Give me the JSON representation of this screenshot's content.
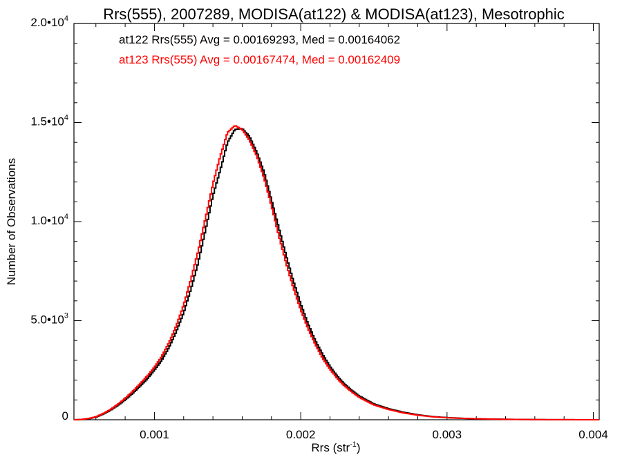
{
  "chart_data": {
    "type": "line",
    "title": "Rrs(555), 2007289, MODISA(at122) & MODISA(at123), Mesotrophic",
    "xlabel": "Rrs (str",
    "xlabel_sup": "-1",
    "xlabel_suffix": ")",
    "ylabel": "Number of Observations",
    "xlim": [
      0.00045,
      0.00404
    ],
    "ylim": [
      0,
      20000
    ],
    "x_ticks": [
      {
        "value": 0.001,
        "label": "0.001"
      },
      {
        "value": 0.002,
        "label": "0.002"
      },
      {
        "value": 0.003,
        "label": "0.003"
      },
      {
        "value": 0.004,
        "label": "0.004"
      }
    ],
    "y_ticks": [
      {
        "value": 0,
        "label": "0",
        "sup": ""
      },
      {
        "value": 5000,
        "label": "5.0•10",
        "sup": "3"
      },
      {
        "value": 10000,
        "label": "1.0•10",
        "sup": "4"
      },
      {
        "value": 15000,
        "label": "1.5•10",
        "sup": "4"
      },
      {
        "value": 20000,
        "label": "2.0•10",
        "sup": "4"
      }
    ],
    "legend": [
      {
        "text": "at122 Rrs(555) Avg = 0.00169293, Med = 0.00164062",
        "color": "#000000"
      },
      {
        "text": "at123 Rrs(555) Avg = 0.00167474, Med = 0.00162409",
        "color": "#ff0000"
      }
    ],
    "legend_placement": "top-left",
    "series": [
      {
        "color": "#000000",
        "x": [
          0.00045,
          0.0005,
          0.00055,
          0.0006,
          0.00065,
          0.0007,
          0.00075,
          0.0008,
          0.00085,
          0.0009,
          0.00095,
          0.001,
          0.00105,
          0.0011,
          0.00115,
          0.0012,
          0.00125,
          0.0013,
          0.00135,
          0.0014,
          0.00145,
          0.0015,
          0.00155,
          0.0016,
          0.00165,
          0.0017,
          0.00175,
          0.0018,
          0.00185,
          0.0019,
          0.00195,
          0.002,
          0.00205,
          0.0021,
          0.00215,
          0.0022,
          0.00225,
          0.0023,
          0.00235,
          0.0024,
          0.0025,
          0.0026,
          0.0027,
          0.0028,
          0.0029,
          0.003,
          0.0031,
          0.0032,
          0.0033,
          0.0034,
          0.0035,
          0.0036,
          0.0037,
          0.0038,
          0.0039,
          0.004
        ],
        "values": [
          0,
          10,
          50,
          130,
          280,
          480,
          720,
          1000,
          1320,
          1680,
          2050,
          2500,
          3000,
          3650,
          4450,
          5400,
          6600,
          7950,
          9600,
          11300,
          12600,
          14000,
          14650,
          14700,
          14300,
          13500,
          12500,
          11100,
          9700,
          8300,
          7000,
          5850,
          4850,
          4000,
          3300,
          2700,
          2200,
          1800,
          1480,
          1200,
          800,
          560,
          380,
          250,
          160,
          110,
          75,
          50,
          35,
          25,
          15,
          10,
          5,
          3,
          2,
          0
        ]
      },
      {
        "color": "#ff0000",
        "x": [
          0.00045,
          0.0005,
          0.00055,
          0.0006,
          0.00065,
          0.0007,
          0.00075,
          0.0008,
          0.00085,
          0.0009,
          0.00095,
          0.001,
          0.00105,
          0.0011,
          0.00115,
          0.0012,
          0.00125,
          0.0013,
          0.00135,
          0.0014,
          0.00145,
          0.0015,
          0.00155,
          0.0016,
          0.00165,
          0.0017,
          0.00175,
          0.0018,
          0.00185,
          0.0019,
          0.00195,
          0.002,
          0.00205,
          0.0021,
          0.00215,
          0.0022,
          0.00225,
          0.0023,
          0.00235,
          0.0024,
          0.0025,
          0.0026,
          0.0027,
          0.0028,
          0.0029,
          0.003,
          0.0031,
          0.0032,
          0.0033,
          0.0034,
          0.0035,
          0.0036,
          0.0037,
          0.0038,
          0.0039,
          0.004
        ],
        "values": [
          0,
          15,
          60,
          150,
          310,
          520,
          780,
          1080,
          1420,
          1800,
          2200,
          2650,
          3200,
          3900,
          4750,
          5800,
          7100,
          8550,
          10200,
          11900,
          13300,
          14500,
          14850,
          14650,
          14100,
          13300,
          12200,
          10800,
          9300,
          7900,
          6650,
          5550,
          4600,
          3800,
          3100,
          2550,
          2080,
          1700,
          1400,
          1130,
          750,
          520,
          350,
          230,
          150,
          100,
          70,
          48,
          33,
          22,
          14,
          9,
          5,
          3,
          2,
          0
        ]
      }
    ]
  }
}
